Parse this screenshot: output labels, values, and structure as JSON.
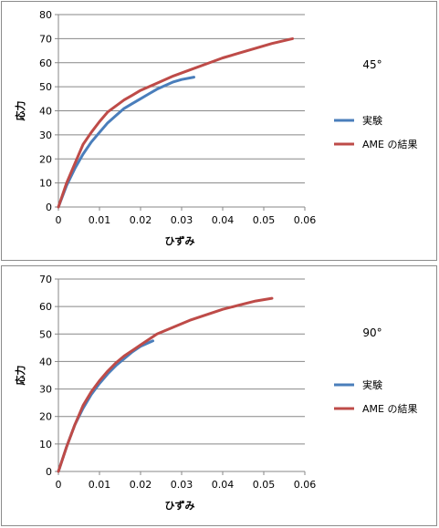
{
  "chart_data": [
    {
      "type": "line",
      "annotation": "45°",
      "xlabel": "ひずみ",
      "ylabel": "応力",
      "xlim": [
        0,
        0.06
      ],
      "ylim": [
        0,
        80
      ],
      "xticks": [
        "0",
        "0.01",
        "0.02",
        "0.03",
        "0.04",
        "0.05",
        "0.06"
      ],
      "yticks": [
        "0",
        "10",
        "20",
        "30",
        "40",
        "50",
        "60",
        "70",
        "80"
      ],
      "legend_position": "right",
      "grid": "horizontal",
      "series": [
        {
          "name": "実験",
          "color": "#4a7ebb",
          "x": [
            0,
            0.002,
            0.004,
            0.006,
            0.008,
            0.01,
            0.012,
            0.014,
            0.016,
            0.018,
            0.02,
            0.022,
            0.024,
            0.026,
            0.028,
            0.03,
            0.033
          ],
          "y": [
            0,
            9,
            16,
            22,
            27,
            31,
            35,
            38,
            41,
            43,
            45,
            47,
            49,
            50.5,
            52,
            53,
            54
          ]
        },
        {
          "name": "AME の結果",
          "color": "#be4b48",
          "x": [
            0,
            0.002,
            0.004,
            0.006,
            0.008,
            0.01,
            0.012,
            0.014,
            0.016,
            0.018,
            0.02,
            0.024,
            0.028,
            0.032,
            0.036,
            0.04,
            0.044,
            0.048,
            0.052,
            0.057
          ],
          "y": [
            0,
            10,
            18,
            26,
            31,
            35.5,
            39.5,
            42,
            44.5,
            46.5,
            48.5,
            51.5,
            54.5,
            57,
            59.5,
            62,
            64,
            66,
            68,
            70
          ]
        }
      ]
    },
    {
      "type": "line",
      "annotation": "90°",
      "xlabel": "ひずみ",
      "ylabel": "応力",
      "xlim": [
        0,
        0.06
      ],
      "ylim": [
        0,
        70
      ],
      "xticks": [
        "0",
        "0.01",
        "0.02",
        "0.03",
        "0.04",
        "0.05",
        "0.06"
      ],
      "yticks": [
        "0",
        "10",
        "20",
        "30",
        "40",
        "50",
        "60",
        "70"
      ],
      "legend_position": "right",
      "grid": "horizontal",
      "series": [
        {
          "name": "実験",
          "color": "#4a7ebb",
          "x": [
            0,
            0.002,
            0.004,
            0.006,
            0.008,
            0.01,
            0.012,
            0.014,
            0.016,
            0.018,
            0.02,
            0.023
          ],
          "y": [
            0,
            9,
            17,
            23,
            28,
            32,
            35.5,
            38.5,
            41,
            43.5,
            45.5,
            47.5
          ]
        },
        {
          "name": "AME の結果",
          "color": "#be4b48",
          "x": [
            0,
            0.002,
            0.004,
            0.006,
            0.008,
            0.01,
            0.012,
            0.014,
            0.016,
            0.018,
            0.02,
            0.024,
            0.028,
            0.032,
            0.036,
            0.04,
            0.044,
            0.048,
            0.052
          ],
          "y": [
            0,
            9,
            17,
            24,
            29,
            33,
            36.5,
            39.5,
            42,
            44,
            46,
            50,
            52.5,
            55,
            57,
            59,
            60.5,
            62,
            63
          ]
        }
      ]
    }
  ]
}
